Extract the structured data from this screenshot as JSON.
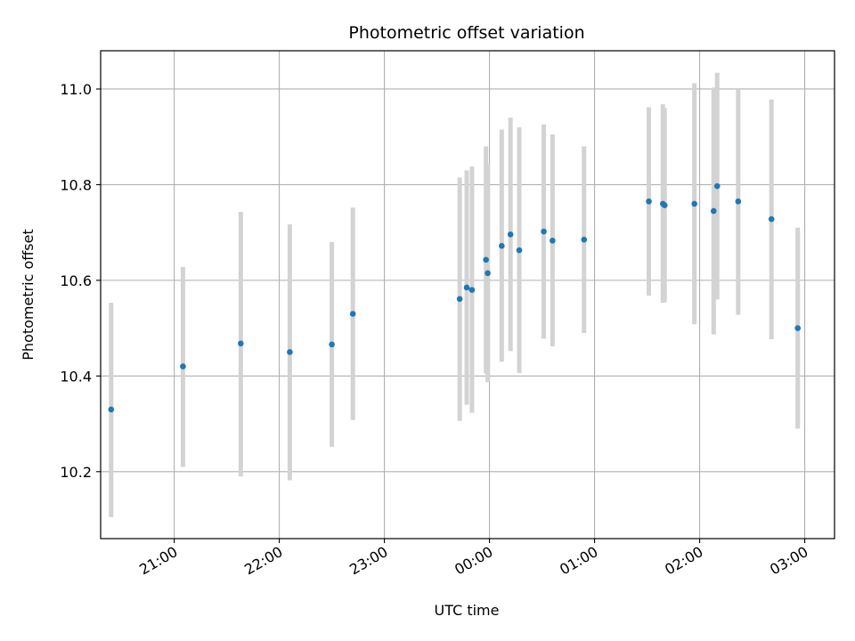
{
  "chart_data": {
    "type": "scatter",
    "title": "Photometric offset variation",
    "xlabel": "UTC time",
    "ylabel": "Photometric offset",
    "x_axis_type": "time",
    "x_reference_date": "",
    "xlim": [
      "20:18",
      "03:17"
    ],
    "ylim": [
      10.06,
      11.08
    ],
    "yticks": [
      10.2,
      10.4,
      10.6,
      10.8,
      11.0
    ],
    "ytick_labels": [
      "10.2",
      "10.4",
      "10.6",
      "10.8",
      "11.0"
    ],
    "xticks": [
      "21:00",
      "22:00",
      "23:00",
      "00:00",
      "01:00",
      "02:00",
      "03:00"
    ],
    "xtick_labels": [
      "21:00",
      "22:00",
      "23:00",
      "00:00",
      "01:00",
      "02:00",
      "03:00"
    ],
    "grid": true,
    "marker_color": "#1f77b4",
    "errorbar_color": "#d3d3d3",
    "points": [
      {
        "x": "20:24",
        "y": 10.33,
        "ylow": 10.105,
        "yhigh": 10.553
      },
      {
        "x": "21:05",
        "y": 10.42,
        "ylow": 10.21,
        "yhigh": 10.628
      },
      {
        "x": "21:38",
        "y": 10.468,
        "ylow": 10.19,
        "yhigh": 10.743
      },
      {
        "x": "22:06",
        "y": 10.45,
        "ylow": 10.182,
        "yhigh": 10.717
      },
      {
        "x": "22:30",
        "y": 10.466,
        "ylow": 10.252,
        "yhigh": 10.68
      },
      {
        "x": "22:42",
        "y": 10.53,
        "ylow": 10.308,
        "yhigh": 10.752
      },
      {
        "x": "23:43",
        "y": 10.561,
        "ylow": 10.306,
        "yhigh": 10.815
      },
      {
        "x": "23:47",
        "y": 10.585,
        "ylow": 10.34,
        "yhigh": 10.83
      },
      {
        "x": "23:50",
        "y": 10.58,
        "ylow": 10.323,
        "yhigh": 10.838
      },
      {
        "x": "23:58",
        "y": 10.643,
        "ylow": 10.405,
        "yhigh": 10.88
      },
      {
        "x": "23:59",
        "y": 10.615,
        "ylow": 10.387,
        "yhigh": 10.843
      },
      {
        "x": "00:07",
        "y": 10.672,
        "ylow": 10.43,
        "yhigh": 10.915
      },
      {
        "x": "00:12",
        "y": 10.696,
        "ylow": 10.452,
        "yhigh": 10.94
      },
      {
        "x": "00:17",
        "y": 10.663,
        "ylow": 10.406,
        "yhigh": 10.92
      },
      {
        "x": "00:31",
        "y": 10.702,
        "ylow": 10.478,
        "yhigh": 10.926
      },
      {
        "x": "00:36",
        "y": 10.683,
        "ylow": 10.462,
        "yhigh": 10.905
      },
      {
        "x": "00:54",
        "y": 10.685,
        "ylow": 10.49,
        "yhigh": 10.88
      },
      {
        "x": "01:31",
        "y": 10.765,
        "ylow": 10.568,
        "yhigh": 10.962
      },
      {
        "x": "01:39",
        "y": 10.76,
        "ylow": 10.553,
        "yhigh": 10.968
      },
      {
        "x": "01:40",
        "y": 10.757,
        "ylow": 10.554,
        "yhigh": 10.96
      },
      {
        "x": "01:57",
        "y": 10.76,
        "ylow": 10.508,
        "yhigh": 11.012
      },
      {
        "x": "02:08",
        "y": 10.745,
        "ylow": 10.487,
        "yhigh": 11.003
      },
      {
        "x": "02:10",
        "y": 10.797,
        "ylow": 10.56,
        "yhigh": 11.034
      },
      {
        "x": "02:22",
        "y": 10.765,
        "ylow": 10.528,
        "yhigh": 11.0
      },
      {
        "x": "02:41",
        "y": 10.728,
        "ylow": 10.477,
        "yhigh": 10.978
      },
      {
        "x": "02:56",
        "y": 10.5,
        "ylow": 10.29,
        "yhigh": 10.71
      }
    ]
  }
}
